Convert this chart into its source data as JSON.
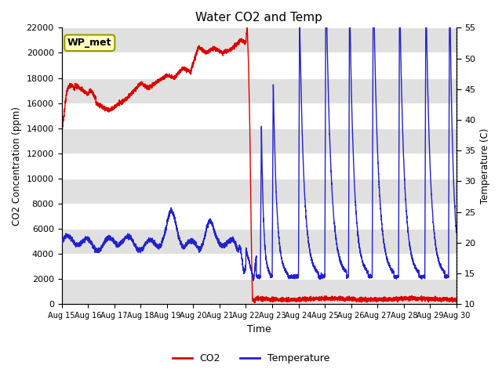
{
  "title": "Water CO2 and Temp",
  "xlabel": "Time",
  "ylabel_left": "CO2 Concentration (ppm)",
  "ylabel_right": "Temperature (C)",
  "co2_color": "#DD0000",
  "temp_color": "#2222CC",
  "annotation_label": "WP_met",
  "annotation_box_color": "#FFFFC0",
  "annotation_border_color": "#999900",
  "ylim_left": [
    0,
    22000
  ],
  "ylim_right": [
    10,
    55
  ],
  "background_color": "#ffffff",
  "strip_color": "#e0e0e0",
  "legend_co2": "CO2",
  "legend_temp": "Temperature",
  "x_tick_labels": [
    "Aug 15",
    "Aug 16",
    "Aug 17",
    "Aug 18",
    "Aug 19",
    "Aug 20",
    "Aug 21",
    "Aug 22",
    "Aug 23",
    "Aug 24",
    "Aug 25",
    "Aug 26",
    "Aug 27",
    "Aug 28",
    "Aug 29",
    "Aug 30"
  ],
  "x_tick_positions": [
    0,
    1,
    2,
    3,
    4,
    5,
    6,
    7,
    8,
    9,
    10,
    11,
    12,
    13,
    14,
    15
  ],
  "yticks_left": [
    0,
    2000,
    4000,
    6000,
    8000,
    10000,
    12000,
    14000,
    16000,
    18000,
    20000,
    22000
  ],
  "yticks_right": [
    10,
    15,
    20,
    25,
    30,
    35,
    40,
    45,
    50,
    55
  ]
}
